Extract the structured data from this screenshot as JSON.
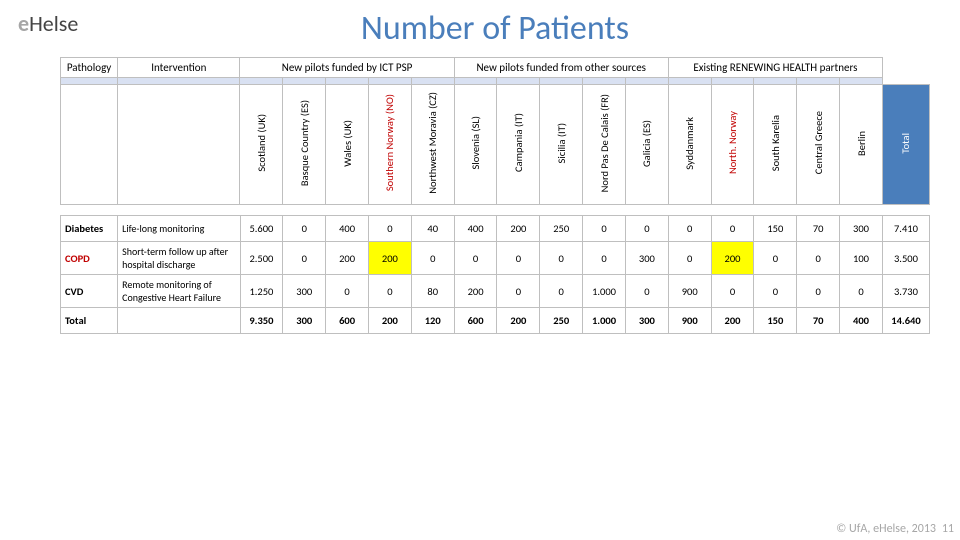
{
  "logo": {
    "e": "e",
    "h": "Helse"
  },
  "title": "Number of Patients",
  "header": {
    "pathology": "Pathology",
    "intervention": "Intervention",
    "group1": "New pilots funded by ICT PSP",
    "group2": "New pilots funded from other sources",
    "group3": "Existing RENEWING HEALTH partners"
  },
  "columns": [
    {
      "label": "Scotland (UK)",
      "red": false
    },
    {
      "label": "Basque Country (ES)",
      "red": false
    },
    {
      "label": "Wales (UK)",
      "red": false
    },
    {
      "label": "Southern Norway (NO)",
      "red": true
    },
    {
      "label": "Northwest Moravia (CZ)",
      "red": false
    },
    {
      "label": "Slovenia (SL)",
      "red": false
    },
    {
      "label": "Campania (IT)",
      "red": false
    },
    {
      "label": "Sicilia (IT)",
      "red": false
    },
    {
      "label": "Nord Pas De Calais (FR)",
      "red": false
    },
    {
      "label": "Galicia (ES)",
      "red": false
    },
    {
      "label": "Syddanmark",
      "red": false
    },
    {
      "label": "North. Norway",
      "red": true
    },
    {
      "label": "South Karelia",
      "red": false
    },
    {
      "label": "Central Greece",
      "red": false
    },
    {
      "label": "Berlin",
      "red": false
    }
  ],
  "totalLabel": "Total",
  "rows": [
    {
      "path": "Diabetes",
      "pathClass": "",
      "intv": "Life-long monitoring",
      "vals": [
        "5.600",
        "0",
        "400",
        "0",
        "40",
        "400",
        "200",
        "250",
        "0",
        "0",
        "0",
        "0",
        "150",
        "70",
        "300"
      ],
      "hl": [],
      "total": "7.410"
    },
    {
      "path": "COPD",
      "pathClass": "copd",
      "intv": "Short-term follow up after hospital discharge",
      "vals": [
        "2.500",
        "0",
        "200",
        "200",
        "0",
        "0",
        "0",
        "0",
        "0",
        "300",
        "0",
        "200",
        "0",
        "0",
        "100"
      ],
      "hl": [
        3,
        11
      ],
      "total": "3.500"
    },
    {
      "path": "CVD",
      "pathClass": "",
      "intv": "Remote monitoring of Congestive Heart Failure",
      "vals": [
        "1.250",
        "300",
        "0",
        "0",
        "80",
        "200",
        "0",
        "0",
        "1.000",
        "0",
        "900",
        "0",
        "0",
        "0",
        "0"
      ],
      "hl": [],
      "total": "3.730"
    }
  ],
  "totalRow": {
    "label": "Total",
    "vals": [
      "9.350",
      "300",
      "600",
      "200",
      "120",
      "600",
      "200",
      "250",
      "1.000",
      "300",
      "900",
      "200",
      "150",
      "70",
      "400"
    ],
    "total": "14.640"
  },
  "footer": "© UfA, eHelse, 2013",
  "page": "11"
}
